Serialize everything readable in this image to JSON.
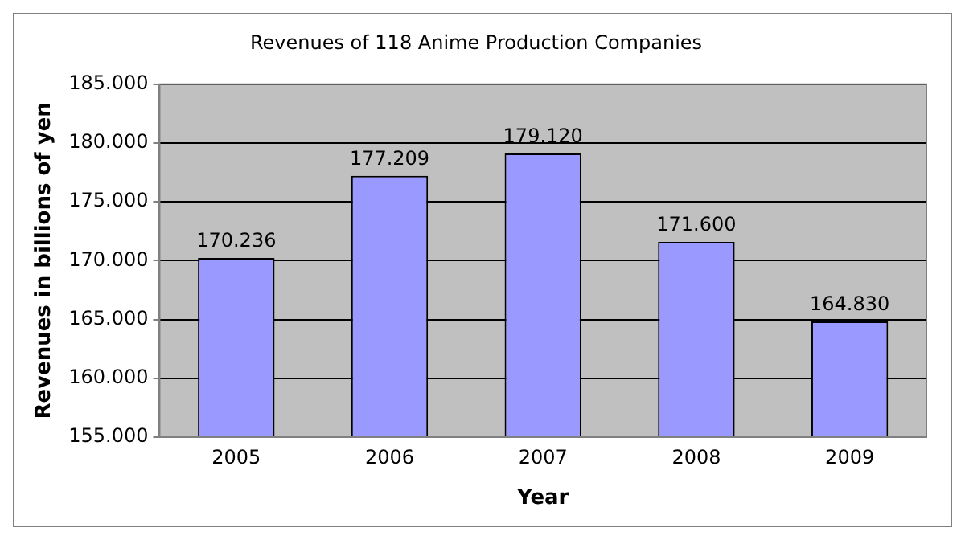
{
  "chart_data": {
    "type": "bar",
    "title": "Revenues of 118 Anime Production Companies",
    "xlabel": "Year",
    "ylabel": "Revenues in billions of yen",
    "categories": [
      "2005",
      "2006",
      "2007",
      "2008",
      "2009"
    ],
    "values": [
      170.236,
      177.209,
      179.12,
      171.6,
      164.83
    ],
    "value_labels": [
      "170.236",
      "177.209",
      "179.120",
      "171.600",
      "164.830"
    ],
    "color": "#9999ff",
    "ylim": [
      155,
      185
    ],
    "yticks": [
      {
        "value": 155,
        "label": "155.000"
      },
      {
        "value": 160,
        "label": "160.000"
      },
      {
        "value": 165,
        "label": "165.000"
      },
      {
        "value": 170,
        "label": "170.000"
      },
      {
        "value": 175,
        "label": "175.000"
      },
      {
        "value": 180,
        "label": "180.000"
      },
      {
        "value": 185,
        "label": "185.000"
      }
    ],
    "grid": "y",
    "legend": false
  }
}
